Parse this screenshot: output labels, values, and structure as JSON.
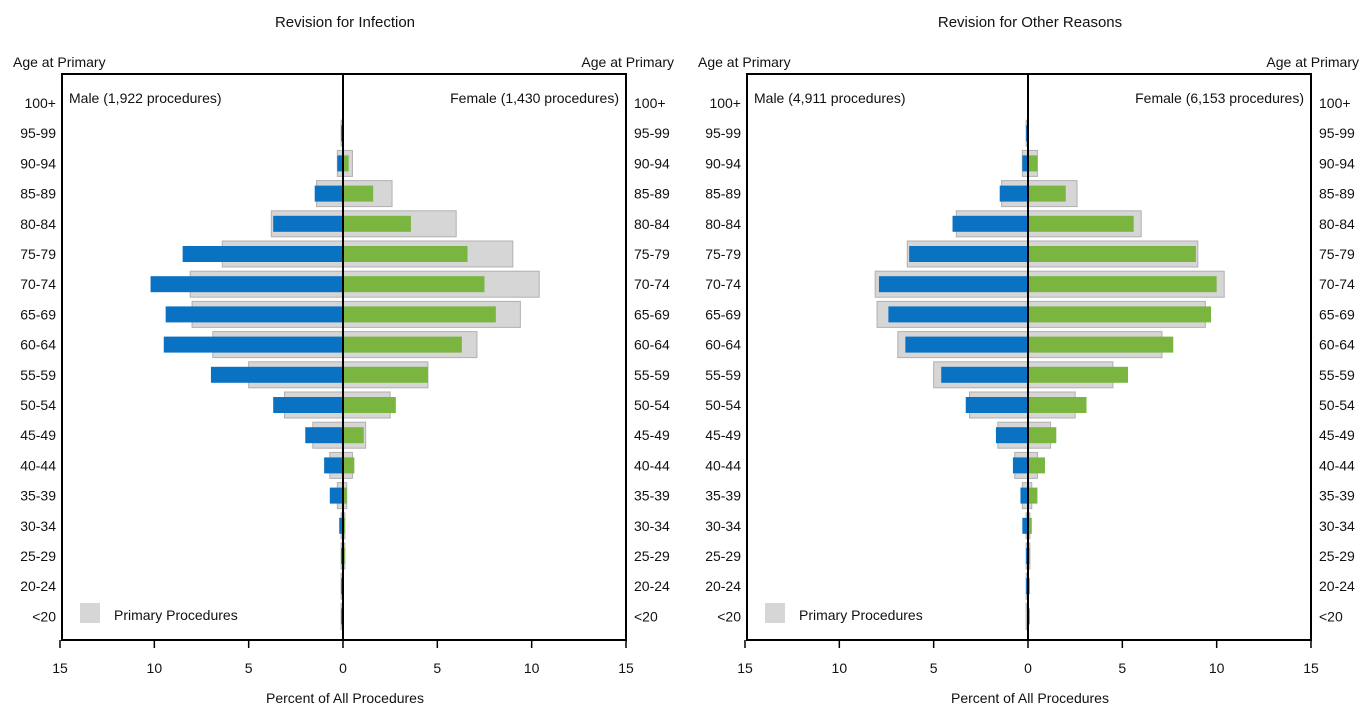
{
  "colors": {
    "male": "#0a72c3",
    "female": "#7ab540",
    "primary_fill": "#d6d6d6",
    "primary_stroke": "#b0b0b0"
  },
  "chart_data": [
    {
      "type": "bar",
      "title": "Revision for Infection",
      "xlabel": "Percent of All Procedures",
      "left_axis_label": "Age at Primary",
      "right_axis_label": "Age at Primary",
      "male_label": "Male (1,922 procedures)",
      "female_label": "Female (1,430 procedures)",
      "legend_label": "Primary Procedures",
      "legend_position": "bottom-left",
      "xlim": [
        -15,
        15
      ],
      "xticks": [
        "15",
        "10",
        "5",
        "0",
        "5",
        "10",
        "15"
      ],
      "categories": [
        "100+",
        "95-99",
        "90-94",
        "85-89",
        "80-84",
        "75-79",
        "70-74",
        "65-69",
        "60-64",
        "55-59",
        "50-54",
        "45-49",
        "40-44",
        "35-39",
        "30-34",
        "25-29",
        "20-24",
        "<20"
      ],
      "series": [
        {
          "name": "Male",
          "values": [
            0,
            0.1,
            0.3,
            1.5,
            3.7,
            8.5,
            10.2,
            9.4,
            9.5,
            7.0,
            3.7,
            2.0,
            1.0,
            0.7,
            0.2,
            0.1,
            0.1,
            0.1
          ]
        },
        {
          "name": "Female",
          "values": [
            0,
            0,
            0.3,
            1.6,
            3.6,
            6.6,
            7.5,
            8.1,
            6.3,
            4.5,
            2.8,
            1.1,
            0.6,
            0.2,
            0.1,
            0.1,
            0,
            0
          ]
        },
        {
          "name": "Primary Procedures (Male)",
          "values": [
            0,
            0.1,
            0.3,
            1.4,
            3.8,
            6.4,
            8.1,
            8.0,
            6.9,
            5.0,
            3.1,
            1.6,
            0.7,
            0.3,
            0.1,
            0.1,
            0.1,
            0.1
          ]
        },
        {
          "name": "Primary Procedures (Female)",
          "values": [
            0,
            0,
            0.5,
            2.6,
            6.0,
            9.0,
            10.4,
            9.4,
            7.1,
            4.5,
            2.5,
            1.2,
            0.5,
            0.2,
            0.1,
            0.1,
            0,
            0
          ]
        }
      ]
    },
    {
      "type": "bar",
      "title": "Revision for Other Reasons",
      "xlabel": "Percent of All Procedures",
      "left_axis_label": "Age at Primary",
      "right_axis_label": "Age at Primary",
      "male_label": "Male (4,911 procedures)",
      "female_label": "Female (6,153 procedures)",
      "legend_label": "Primary Procedures",
      "legend_position": "bottom-left",
      "xlim": [
        -15,
        15
      ],
      "xticks": [
        "15",
        "10",
        "5",
        "0",
        "5",
        "10",
        "15"
      ],
      "categories": [
        "100+",
        "95-99",
        "90-94",
        "85-89",
        "80-84",
        "75-79",
        "70-74",
        "65-69",
        "60-64",
        "55-59",
        "50-54",
        "45-49",
        "40-44",
        "35-39",
        "30-34",
        "25-29",
        "20-24",
        "<20"
      ],
      "series": [
        {
          "name": "Male",
          "values": [
            0,
            0.1,
            0.3,
            1.5,
            4.0,
            6.3,
            7.9,
            7.4,
            6.5,
            4.6,
            3.3,
            1.7,
            0.8,
            0.4,
            0.3,
            0.1,
            0.1,
            0
          ]
        },
        {
          "name": "Female",
          "values": [
            0,
            0,
            0.5,
            2.0,
            5.6,
            8.9,
            10.0,
            9.7,
            7.7,
            5.3,
            3.1,
            1.5,
            0.9,
            0.5,
            0.2,
            0.1,
            0.1,
            0.1
          ]
        },
        {
          "name": "Primary Procedures (Male)",
          "values": [
            0,
            0.1,
            0.3,
            1.4,
            3.8,
            6.4,
            8.1,
            8.0,
            6.9,
            5.0,
            3.1,
            1.6,
            0.7,
            0.3,
            0.1,
            0.1,
            0.1,
            0.1
          ]
        },
        {
          "name": "Primary Procedures (Female)",
          "values": [
            0,
            0,
            0.5,
            2.6,
            6.0,
            9.0,
            10.4,
            9.4,
            7.1,
            4.5,
            2.5,
            1.2,
            0.5,
            0.2,
            0.1,
            0.1,
            0,
            0
          ]
        }
      ]
    }
  ]
}
